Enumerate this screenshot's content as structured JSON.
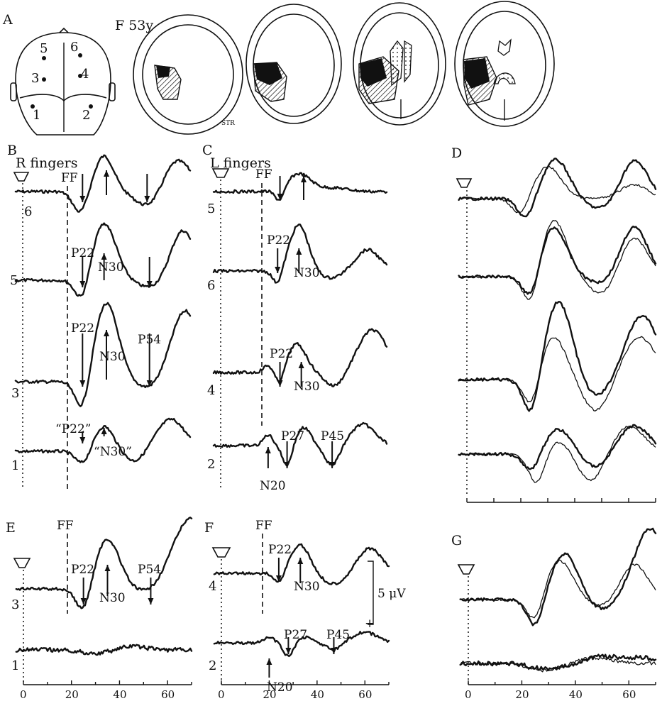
{
  "figure": {
    "panel_labels": {
      "A": "A",
      "B": "B",
      "C": "C",
      "D": "D",
      "E": "E",
      "F": "F",
      "G": "G"
    },
    "patient": "F 53y",
    "scan_note": "STR",
    "electrodes": [
      "5",
      "6",
      "3",
      "4",
      "1",
      "2"
    ],
    "titles": {
      "B": "R fingers",
      "C": "L fingers"
    },
    "ff": "FF",
    "scale_bar": "5 μV",
    "plus": "+"
  },
  "chart_data": [
    {
      "type": "line",
      "panel": "B",
      "xlabel": "",
      "ylabel": "",
      "x_range": [
        0,
        70
      ],
      "title": "R fingers",
      "series": [
        {
          "name": "6",
          "peaks": [
            [
              "",
              25
            ],
            [
              "",
              35
            ],
            [
              "",
              52
            ]
          ]
        },
        {
          "name": "5",
          "peaks": [
            [
              "P22",
              25
            ],
            [
              "N30",
              34
            ],
            [
              "",
              53
            ]
          ]
        },
        {
          "name": "3",
          "peaks": [
            [
              "P22",
              25
            ],
            [
              "N30",
              35
            ],
            [
              "P54",
              53
            ]
          ]
        },
        {
          "name": "1",
          "peaks": [
            [
              "“P22”",
              25
            ],
            [
              "“N30”",
              34
            ]
          ]
        }
      ]
    },
    {
      "type": "line",
      "panel": "C",
      "xlabel": "",
      "ylabel": "",
      "x_range": [
        0,
        70
      ],
      "title": "L fingers",
      "series": [
        {
          "name": "5",
          "peaks": [
            [
              "",
              25
            ],
            [
              "",
              35
            ]
          ]
        },
        {
          "name": "6",
          "peaks": [
            [
              "P22",
              24
            ],
            [
              "N30",
              33
            ]
          ]
        },
        {
          "name": "4",
          "peaks": [
            [
              "P22",
              25
            ],
            [
              "N30",
              34
            ]
          ]
        },
        {
          "name": "2",
          "peaks": [
            [
              "N20",
              20
            ],
            [
              "P27",
              28
            ],
            [
              "P45",
              47
            ]
          ]
        }
      ]
    },
    {
      "type": "line",
      "panel": "D",
      "xlabel": "",
      "ylabel": "",
      "x_range": [
        0,
        70
      ],
      "series_count": 4
    },
    {
      "type": "line",
      "panel": "E",
      "xlabel": "",
      "ylabel": "",
      "x_range": [
        0,
        70
      ],
      "x_ticks": [
        0,
        20,
        40,
        60
      ],
      "series": [
        {
          "name": "3",
          "peaks": [
            [
              "P22",
              25
            ],
            [
              "N30",
              35
            ],
            [
              "P54",
              53
            ]
          ]
        },
        {
          "name": "1",
          "peaks": []
        }
      ]
    },
    {
      "type": "line",
      "panel": "F",
      "xlabel": "",
      "ylabel": "",
      "x_range": [
        0,
        70
      ],
      "x_ticks": [
        0,
        20,
        40,
        60
      ],
      "series": [
        {
          "name": "4",
          "peaks": [
            [
              "P22",
              24
            ],
            [
              "N30",
              33
            ]
          ]
        },
        {
          "name": "2",
          "peaks": [
            [
              "N20",
              20
            ],
            [
              "P27",
              28
            ],
            [
              "P45",
              47
            ]
          ]
        }
      ]
    },
    {
      "type": "line",
      "panel": "G",
      "xlabel": "",
      "ylabel": "",
      "x_range": [
        0,
        70
      ],
      "x_ticks": [
        0,
        20,
        40,
        60
      ],
      "series_count": 2
    }
  ]
}
